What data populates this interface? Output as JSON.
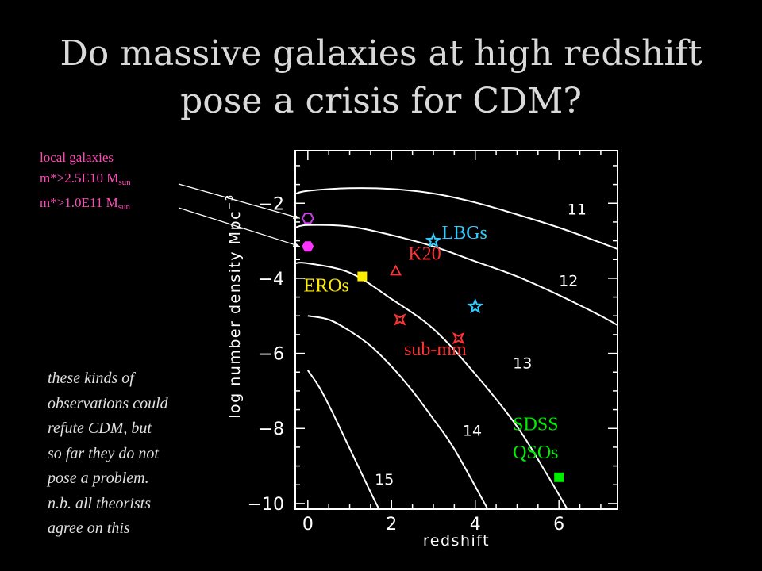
{
  "slide": {
    "title_line1": "Do massive galaxies at high redshift",
    "title_line2": "pose a crisis for CDM?"
  },
  "annotations": {
    "local_galaxies": {
      "heading": "local galaxies",
      "line1_main": "m*>2.5E10 M",
      "line1_sub": "sun",
      "line2_main": "m*>1.0E11 M",
      "line2_sub": "sun"
    },
    "comment_lines": [
      "these kinds of",
      "observations could",
      "refute CDM, but",
      "so far they do not",
      "pose a problem.",
      "n.b. all theorists",
      "agree on this"
    ]
  },
  "colors": {
    "local_open": "#d23cf0",
    "local_filled": "#ff33ff",
    "lbg": "#33ccff",
    "k20": "#ff3333",
    "ero": "#ffee00",
    "submm": "#ff3333",
    "qso": "#00ee00",
    "curve": "#ffffff"
  },
  "chart_data": {
    "type": "line",
    "xlabel": "redshift",
    "ylabel_main": "log number density Mpc",
    "ylabel_sup": "−3",
    "xlim": [
      -0.3,
      7.4
    ],
    "ylim": [
      -10.15,
      -0.6
    ],
    "xticks": [
      0,
      2,
      4,
      6
    ],
    "xtick_labels": [
      "0",
      "2",
      "4",
      "6"
    ],
    "yticks": [
      -2,
      -4,
      -6,
      -8,
      -10
    ],
    "ytick_labels": [
      "−2",
      "−4",
      "−6",
      "−8",
      "−10"
    ],
    "grid": false,
    "series": [
      {
        "name": "11",
        "x": [
          -0.3,
          0,
          1,
          2,
          3,
          4,
          5,
          6,
          7,
          7.4
        ],
        "y": [
          -1.75,
          -1.67,
          -1.6,
          -1.62,
          -1.74,
          -1.98,
          -2.3,
          -2.65,
          -3.05,
          -3.22
        ]
      },
      {
        "name": "12",
        "x": [
          -0.3,
          0,
          1,
          2,
          3,
          4,
          5,
          6,
          7,
          7.4
        ],
        "y": [
          -2.65,
          -2.58,
          -2.62,
          -2.85,
          -3.15,
          -3.55,
          -3.95,
          -4.45,
          -5.0,
          -5.25
        ]
      },
      {
        "name": "13",
        "x": [
          -0.3,
          0,
          1,
          2,
          3,
          4,
          5,
          5.7,
          6.2
        ],
        "y": [
          -3.6,
          -3.6,
          -3.85,
          -4.55,
          -5.35,
          -6.55,
          -7.95,
          -9.2,
          -10.15
        ]
      },
      {
        "name": "14",
        "x": [
          0,
          0.5,
          1,
          1.5,
          2,
          2.5,
          3,
          3.5,
          4.3
        ],
        "y": [
          -5.0,
          -5.1,
          -5.4,
          -5.8,
          -6.35,
          -7.0,
          -7.75,
          -8.55,
          -10.15
        ]
      },
      {
        "name": "15",
        "x": [
          0,
          0.3,
          0.6,
          0.9,
          1.2,
          1.5,
          1.7
        ],
        "y": [
          -6.45,
          -6.95,
          -7.6,
          -8.3,
          -9.0,
          -9.7,
          -10.15
        ]
      }
    ],
    "curve_labels": [
      {
        "text": "11",
        "x": 6.2,
        "y": -2.3
      },
      {
        "text": "12",
        "x": 6.0,
        "y": -4.2
      },
      {
        "text": "13",
        "x": 4.9,
        "y": -6.4
      },
      {
        "text": "14",
        "x": 3.7,
        "y": -8.2
      },
      {
        "text": "15",
        "x": 1.6,
        "y": -9.5
      }
    ],
    "points": [
      {
        "group": "local_open",
        "marker": "hexagon-open",
        "x": 0.0,
        "y": -2.4
      },
      {
        "group": "local_filled",
        "marker": "hexagon-filled",
        "x": 0.0,
        "y": -3.15
      },
      {
        "group": "lbg",
        "marker": "star-open",
        "x": 3.0,
        "y": -3.0
      },
      {
        "group": "lbg",
        "marker": "star-open",
        "x": 4.0,
        "y": -4.75
      },
      {
        "group": "k20",
        "marker": "triangle-open",
        "x": 2.1,
        "y": -3.8
      },
      {
        "group": "ero",
        "marker": "square-filled",
        "x": 1.3,
        "y": -3.95
      },
      {
        "group": "submm",
        "marker": "star4-open",
        "x": 2.2,
        "y": -5.1
      },
      {
        "group": "submm",
        "marker": "star4-open",
        "x": 3.6,
        "y": -5.6
      },
      {
        "group": "qso",
        "marker": "square-filled",
        "x": 6.0,
        "y": -9.3
      }
    ],
    "group_labels": [
      {
        "text": "LBGs",
        "group": "lbg",
        "x": 3.2,
        "y": -2.95
      },
      {
        "text": "K20",
        "group": "k20",
        "x": 2.4,
        "y": -3.5
      },
      {
        "text": "EROs",
        "group": "ero",
        "x": -0.1,
        "y": -4.35
      },
      {
        "text": "sub-mm",
        "group": "submm",
        "x": 2.3,
        "y": -6.05
      },
      {
        "text": "SDSS",
        "group": "qso",
        "x": 4.9,
        "y": -8.05
      },
      {
        "text": "QSOs",
        "group": "qso",
        "x": 4.9,
        "y": -8.8
      }
    ]
  }
}
